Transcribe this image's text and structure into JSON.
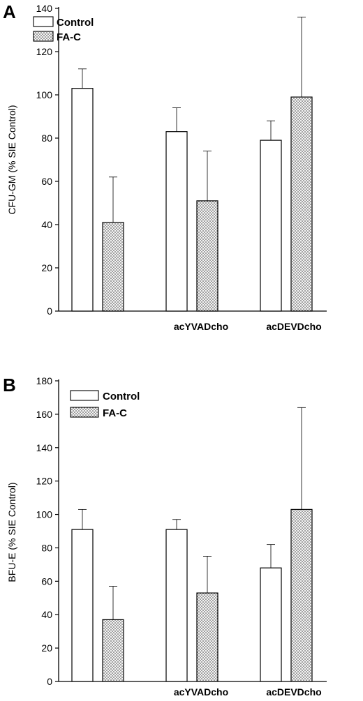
{
  "panels": [
    {
      "letter": "A"
    },
    {
      "letter": "B"
    }
  ],
  "chart_data": [
    {
      "type": "bar",
      "ylabel": "CFU-GM (% SIE Control)",
      "ylim": [
        0,
        140
      ],
      "yticks": [
        0,
        20,
        40,
        60,
        80,
        100,
        120,
        140
      ],
      "categories": [
        "",
        "acYVADcho",
        "acDEVDcho"
      ],
      "legend_placement": "top-left",
      "grid": false,
      "series": [
        {
          "name": "Control",
          "pattern": "open",
          "color": "#ffffff",
          "values": [
            103,
            83,
            79
          ],
          "errors": [
            9,
            11,
            9
          ]
        },
        {
          "name": "FA-C",
          "pattern": "dotted",
          "color": "#d0d0d0",
          "values": [
            41,
            51,
            99
          ],
          "errors": [
            21,
            23,
            37
          ]
        }
      ]
    },
    {
      "type": "bar",
      "ylabel": "BFU-E (% SIE Control)",
      "ylim": [
        0,
        180
      ],
      "yticks": [
        0,
        20,
        40,
        60,
        80,
        100,
        120,
        140,
        160,
        180
      ],
      "categories": [
        "",
        "acYVADcho",
        "acDEVDcho"
      ],
      "legend_placement": "top-left",
      "grid": false,
      "series": [
        {
          "name": "Control",
          "pattern": "open",
          "color": "#ffffff",
          "values": [
            91,
            91,
            68
          ],
          "errors": [
            12,
            6,
            14
          ]
        },
        {
          "name": "FA-C",
          "pattern": "dotted",
          "color": "#d0d0d0",
          "values": [
            37,
            53,
            103
          ],
          "errors": [
            20,
            22,
            61
          ]
        }
      ]
    }
  ]
}
